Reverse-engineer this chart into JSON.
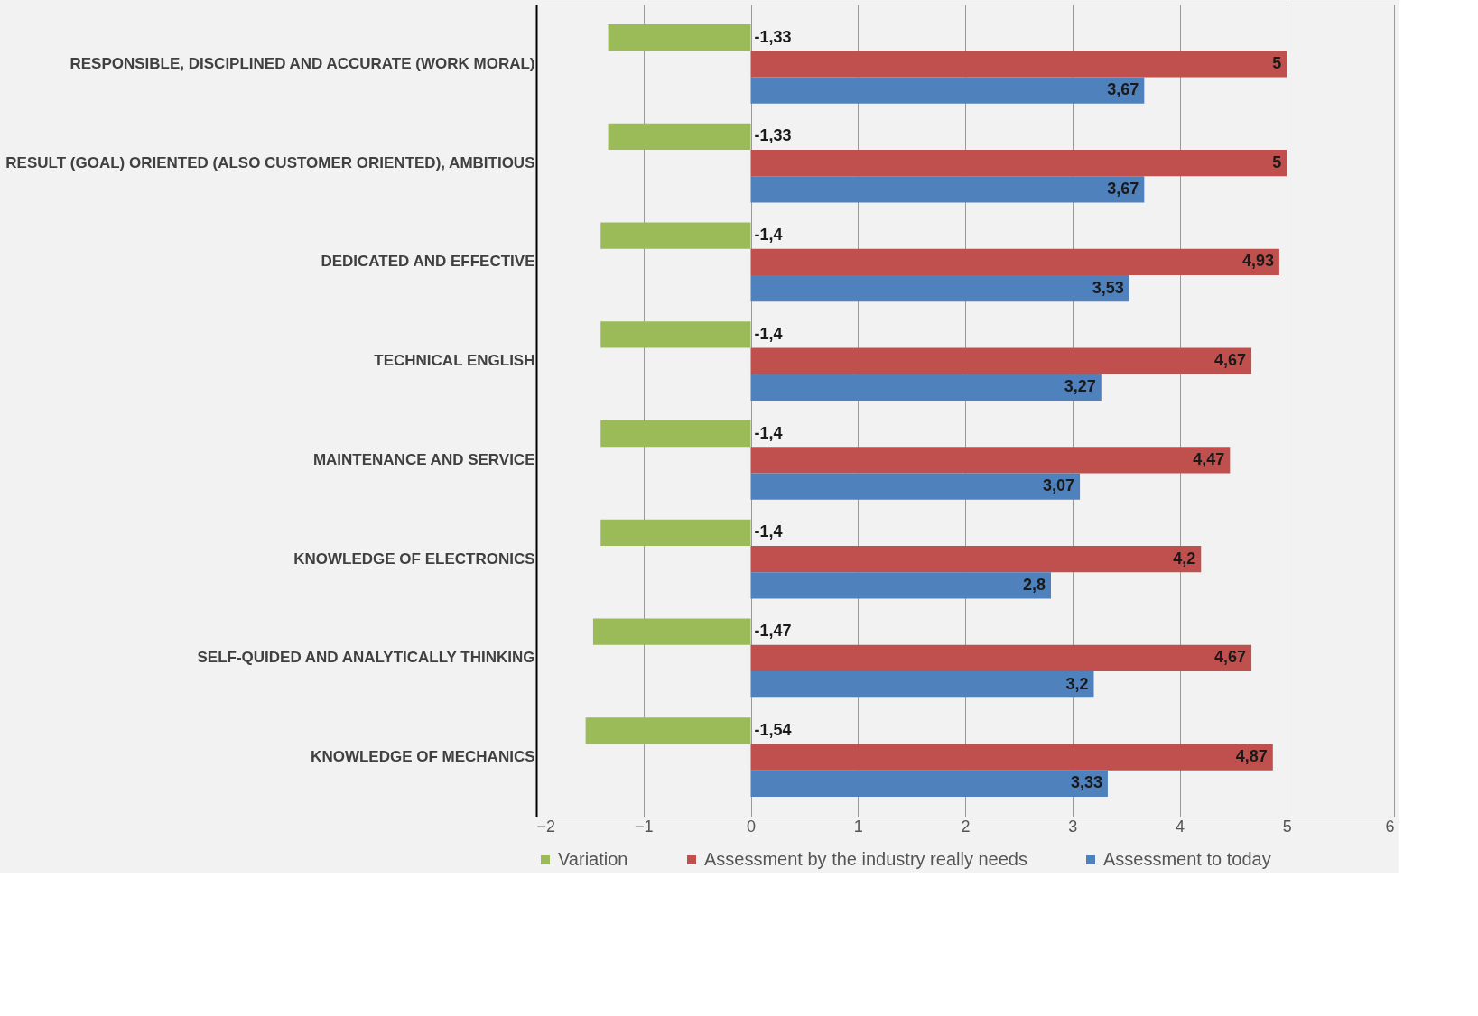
{
  "chart_data": {
    "type": "bar",
    "orientation": "horizontal",
    "categories": [
      "RESPONSIBLE, DISCIPLINED AND ACCURATE (WORK MORAL)",
      "RESULT (GOAL) ORIENTED (ALSO CUSTOMER ORIENTED), AMBITIOUS",
      "DEDICATED AND EFFECTIVE",
      "TECHNICAL ENGLISH",
      "MAINTENANCE AND SERVICE",
      "KNOWLEDGE OF ELECTRONICS",
      "SELF-QUIDED AND ANALYTICALLY THINKING",
      "KNOWLEDGE OF MECHANICS"
    ],
    "series": [
      {
        "name": "Variation",
        "color": "#9bbb59",
        "values": [
          -1.33,
          -1.33,
          -1.4,
          -1.4,
          -1.4,
          -1.4,
          -1.47,
          -1.54
        ],
        "value_labels": [
          "-1,33",
          "-1,33",
          "-1,4",
          "-1,4",
          "-1,4",
          "-1,4",
          "-1,47",
          "-1,54"
        ]
      },
      {
        "name": "Assessment by the industry really needs",
        "color": "#c0504d",
        "values": [
          5,
          5,
          4.93,
          4.67,
          4.47,
          4.2,
          4.67,
          4.87
        ],
        "value_labels": [
          "5",
          "5",
          "4,93",
          "4,67",
          "4,47",
          "4,2",
          "4,67",
          "4,87"
        ]
      },
      {
        "name": "Assessment to today",
        "color": "#4f81bd",
        "values": [
          3.67,
          3.67,
          3.53,
          3.27,
          3.07,
          2.8,
          3.2,
          3.33
        ],
        "value_labels": [
          "3,67",
          "3,67",
          "3,53",
          "3,27",
          "3,07",
          "2,8",
          "3,2",
          "3,33"
        ]
      }
    ],
    "xlim": [
      -2,
      6
    ],
    "xticks": [
      -2,
      -1,
      0,
      1,
      2,
      3,
      4,
      5,
      6
    ],
    "grid": "x",
    "legend": "bottom"
  }
}
